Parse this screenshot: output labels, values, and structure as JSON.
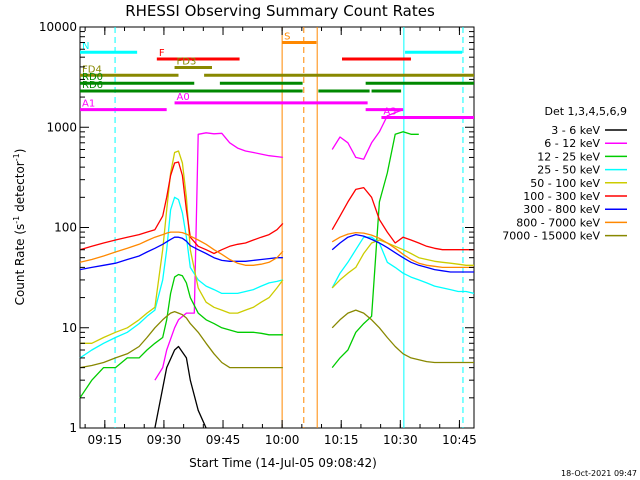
{
  "chart_data": {
    "type": "line",
    "title": "RHESSI Observing Summary Count Rates",
    "xlabel": "Start Time (14-Jul-05 09:08:42)",
    "ylabel_main": "Count Rate (s",
    "ylabel_exp1": "-1",
    "ylabel_mid": " detector",
    "ylabel_exp2": "-1",
    "ylabel_end": ")",
    "footer": "18-Oct-2021 09:47",
    "y_scale": "log",
    "ylim": [
      1,
      10000
    ],
    "xlim_minutes": [
      0,
      100
    ],
    "x_ticks": [
      {
        "min": 6.3,
        "label": "09:15"
      },
      {
        "min": 21.3,
        "label": "09:30"
      },
      {
        "min": 36.3,
        "label": "09:45"
      },
      {
        "min": 51.3,
        "label": "10:00"
      },
      {
        "min": 66.3,
        "label": "10:15"
      },
      {
        "min": 81.3,
        "label": "10:30"
      },
      {
        "min": 96.3,
        "label": "10:45"
      }
    ],
    "y_ticks": [
      {
        "value": 1,
        "label": "1"
      },
      {
        "value": 10,
        "label": "10"
      },
      {
        "value": 100,
        "label": "100"
      },
      {
        "value": 1000,
        "label": "1000"
      },
      {
        "value": 10000,
        "label": "10000"
      }
    ],
    "legend_title": "Det 1,3,4,5,6,9",
    "legend_placement": "right",
    "series": [
      {
        "name": "3 - 6 keV",
        "color": "#000000",
        "x": [
          0,
          4,
          8,
          12,
          15,
          17,
          19,
          21,
          22,
          24,
          25,
          27,
          28,
          30,
          32,
          34,
          36,
          38,
          40,
          42,
          44,
          46,
          48,
          50,
          51.5
        ],
        "y": [
          null,
          null,
          null,
          null,
          null,
          null,
          1,
          2.5,
          4,
          6,
          6.5,
          5,
          3,
          1.5,
          1,
          null,
          null,
          null,
          null,
          null,
          null,
          null,
          null,
          null,
          null
        ]
      },
      {
        "name": "6 - 12 keV",
        "color": "#ff00ff",
        "x": [
          0,
          4,
          8,
          12,
          15,
          17,
          19,
          21,
          22,
          24,
          25,
          27,
          28,
          29,
          30,
          32,
          34,
          36,
          38,
          40,
          42,
          44,
          46,
          48,
          50,
          51.5,
          56,
          62,
          64,
          66,
          68,
          70,
          72,
          74,
          76,
          78,
          80,
          82,
          84,
          86,
          88,
          90,
          92,
          94,
          96,
          98,
          100
        ],
        "y": [
          null,
          null,
          null,
          null,
          null,
          null,
          3,
          4,
          6,
          10,
          12,
          14,
          14,
          14,
          850,
          880,
          860,
          870,
          700,
          620,
          580,
          560,
          540,
          520,
          510,
          500,
          null,
          null,
          600,
          800,
          700,
          500,
          480,
          700,
          900,
          1300,
          1400,
          1500,
          null,
          null,
          null,
          null,
          null,
          null,
          null,
          null,
          null
        ]
      },
      {
        "name": "12 - 25 keV",
        "color": "#00cc00",
        "x": [
          0,
          3,
          6,
          9,
          12,
          15,
          17,
          19,
          21,
          22,
          23,
          24,
          25,
          26,
          27,
          28,
          30,
          32,
          34,
          36,
          38,
          40,
          42,
          44,
          46,
          48,
          50,
          51.5,
          56,
          62,
          64,
          66,
          68,
          70,
          72,
          74,
          76,
          78,
          80,
          82,
          84,
          86,
          88,
          90,
          92,
          94,
          96,
          98,
          100
        ],
        "y": [
          2,
          3,
          4,
          4,
          5,
          5,
          6,
          7,
          8,
          12,
          22,
          32,
          34,
          33,
          28,
          20,
          14,
          12,
          11,
          10,
          9.5,
          9,
          9,
          9,
          8.8,
          8.5,
          8.5,
          8.5,
          null,
          null,
          4,
          5,
          6,
          9,
          11,
          13,
          180,
          350,
          850,
          900,
          850,
          850,
          null,
          null,
          null,
          null,
          null,
          null,
          null
        ]
      },
      {
        "name": "25 - 50 keV",
        "color": "#00ffff",
        "x": [
          0,
          3,
          6,
          9,
          12,
          15,
          17,
          19,
          21,
          22,
          23,
          24,
          25,
          26,
          27,
          28,
          30,
          32,
          34,
          36,
          38,
          40,
          42,
          44,
          46,
          48,
          50,
          51.5,
          56,
          62,
          64,
          66,
          68,
          70,
          72,
          74,
          76,
          78,
          80,
          82,
          84,
          86,
          88,
          90,
          92,
          94,
          96,
          98,
          100
        ],
        "y": [
          5,
          6,
          7,
          8,
          9,
          11,
          13,
          15,
          30,
          60,
          150,
          200,
          190,
          140,
          80,
          40,
          30,
          26,
          24,
          22,
          22,
          22,
          23,
          24,
          26,
          28,
          29,
          30,
          null,
          null,
          25,
          35,
          45,
          60,
          80,
          80,
          70,
          45,
          40,
          35,
          32,
          30,
          28,
          26,
          25,
          24,
          23,
          23,
          22
        ]
      },
      {
        "name": "50 - 100 keV",
        "color": "#cccc00",
        "x": [
          0,
          3,
          6,
          9,
          12,
          15,
          17,
          19,
          21,
          22,
          23,
          24,
          25,
          26,
          27,
          28,
          30,
          32,
          34,
          36,
          38,
          40,
          42,
          44,
          46,
          48,
          50,
          51.5,
          56,
          62,
          64,
          66,
          68,
          70,
          72,
          74,
          76,
          78,
          80,
          82,
          84,
          86,
          88,
          90,
          92,
          94,
          96,
          98,
          100
        ],
        "y": [
          7,
          7,
          8,
          9,
          10,
          12,
          14,
          16,
          60,
          150,
          350,
          560,
          580,
          440,
          200,
          60,
          25,
          18,
          16,
          15,
          14,
          14,
          15,
          16,
          18,
          20,
          25,
          30,
          null,
          null,
          25,
          30,
          35,
          40,
          55,
          70,
          75,
          70,
          65,
          60,
          55,
          50,
          48,
          46,
          45,
          44,
          43,
          42,
          42
        ]
      },
      {
        "name": "100 - 300 keV",
        "color": "#ff0000",
        "x": [
          0,
          3,
          6,
          9,
          12,
          15,
          17,
          19,
          21,
          22,
          23,
          24,
          25,
          26,
          27,
          28,
          30,
          32,
          34,
          36,
          38,
          40,
          42,
          44,
          46,
          48,
          50,
          51.5,
          56,
          62,
          64,
          66,
          68,
          70,
          72,
          74,
          76,
          78,
          80,
          82,
          84,
          86,
          88,
          90,
          92,
          94,
          96,
          98,
          100
        ],
        "y": [
          60,
          65,
          70,
          75,
          80,
          85,
          90,
          95,
          130,
          200,
          330,
          440,
          450,
          330,
          150,
          80,
          65,
          60,
          55,
          60,
          65,
          68,
          70,
          75,
          80,
          85,
          95,
          110,
          null,
          null,
          95,
          130,
          180,
          240,
          250,
          200,
          120,
          90,
          70,
          80,
          75,
          70,
          65,
          62,
          60,
          60,
          60,
          60,
          60
        ]
      },
      {
        "name": "300 - 800 keV",
        "color": "#0000ff",
        "x": [
          0,
          3,
          6,
          9,
          12,
          15,
          17,
          19,
          21,
          22,
          23,
          24,
          25,
          26,
          27,
          28,
          30,
          32,
          34,
          36,
          38,
          40,
          42,
          44,
          46,
          48,
          50,
          51.5,
          56,
          62,
          64,
          66,
          68,
          70,
          72,
          74,
          76,
          78,
          80,
          82,
          84,
          86,
          88,
          90,
          92,
          94,
          96,
          98,
          100
        ],
        "y": [
          38,
          40,
          42,
          44,
          48,
          52,
          57,
          62,
          68,
          72,
          76,
          80,
          80,
          78,
          73,
          66,
          60,
          55,
          50,
          47,
          46,
          46,
          46,
          47,
          48,
          49,
          50,
          50,
          null,
          null,
          60,
          70,
          80,
          85,
          82,
          76,
          70,
          63,
          56,
          50,
          45,
          42,
          40,
          38,
          37,
          36,
          36,
          36,
          36
        ]
      },
      {
        "name": "800 - 7000 keV",
        "color": "#ff8800",
        "x": [
          0,
          3,
          6,
          9,
          12,
          15,
          17,
          19,
          21,
          22,
          23,
          24,
          25,
          26,
          27,
          28,
          30,
          32,
          34,
          36,
          38,
          40,
          42,
          44,
          46,
          48,
          50,
          51.5,
          56,
          62,
          64,
          66,
          68,
          70,
          72,
          74,
          76,
          78,
          80,
          82,
          84,
          86,
          88,
          90,
          92,
          94,
          96,
          98,
          100
        ],
        "y": [
          45,
          48,
          52,
          57,
          62,
          68,
          74,
          80,
          85,
          88,
          90,
          90,
          90,
          89,
          86,
          82,
          75,
          68,
          60,
          54,
          48,
          44,
          42,
          42,
          43,
          45,
          50,
          58,
          null,
          null,
          72,
          80,
          86,
          89,
          88,
          84,
          78,
          70,
          62,
          54,
          48,
          44,
          42,
          41,
          40,
          40,
          40,
          40,
          40
        ]
      },
      {
        "name": "7000 - 15000 keV",
        "color": "#888800",
        "x": [
          0,
          3,
          6,
          9,
          12,
          15,
          17,
          19,
          21,
          22,
          23,
          24,
          25,
          26,
          27,
          28,
          30,
          32,
          34,
          36,
          38,
          40,
          42,
          44,
          46,
          48,
          50,
          51.5,
          56,
          62,
          64,
          66,
          68,
          70,
          72,
          74,
          76,
          78,
          80,
          82,
          84,
          86,
          88,
          90,
          92,
          94,
          96,
          98,
          100
        ],
        "y": [
          4,
          4.2,
          4.5,
          5,
          5.5,
          6.5,
          8,
          10,
          12,
          13,
          14,
          14.5,
          14,
          13.5,
          12.5,
          11,
          9,
          7,
          5.5,
          4.5,
          4,
          4,
          4,
          4,
          4,
          4,
          4,
          4,
          null,
          null,
          10,
          12,
          14,
          15,
          14,
          12,
          10,
          8,
          6.5,
          5.5,
          5,
          4.8,
          4.6,
          4.5,
          4.5,
          4.5,
          4.5,
          4.5,
          4.5
        ]
      }
    ],
    "vertical_lines": [
      {
        "min": 8.9,
        "color": "#00ffff",
        "style": "dashed"
      },
      {
        "min": 51.3,
        "color": "#ff8800",
        "style": "solid"
      },
      {
        "min": 56.8,
        "color": "#ff8800",
        "style": "dashed"
      },
      {
        "min": 60.2,
        "color": "#ff8800",
        "style": "solid"
      },
      {
        "min": 82.2,
        "color": "#00ffff",
        "style": "solid"
      },
      {
        "min": 97.2,
        "color": "#00ffff",
        "style": "dashed"
      }
    ],
    "flag_bars": [
      {
        "label": "N",
        "color": "#00ffff",
        "y": 5600,
        "segments": [
          [
            0,
            14.5
          ],
          [
            82.5,
            97
          ]
        ]
      },
      {
        "label": "S",
        "color": "#ff8800",
        "y": 7000,
        "segments": [
          [
            51.3,
            60
          ]
        ]
      },
      {
        "label": "F",
        "color": "#ff0000",
        "y": 4800,
        "segments": [
          [
            19.5,
            40.5
          ],
          [
            66.5,
            84
          ]
        ]
      },
      {
        "label": "FD3",
        "color": "#888800",
        "y": 3950,
        "segments": [
          [
            24,
            33.5
          ]
        ]
      },
      {
        "label": "FD4",
        "color": "#888800",
        "y": 3300,
        "segments": [
          [
            0,
            25
          ],
          [
            31.5,
            100
          ]
        ]
      },
      {
        "label": "RD0",
        "color": "#008800",
        "y": 2750,
        "segments": [
          [
            0,
            29
          ],
          [
            35.5,
            56.5
          ],
          [
            72.5,
            100
          ]
        ]
      },
      {
        "label": "RD6",
        "color": "#008800",
        "y": 2300,
        "segments": [
          [
            0,
            56.5
          ],
          [
            60.5,
            73.5
          ],
          [
            74,
            81.5
          ]
        ]
      },
      {
        "label": "A0",
        "color": "#ff00ff",
        "y": 1750,
        "segments": [
          [
            24,
            73
          ]
        ]
      },
      {
        "label": "A1",
        "color": "#ff00ff",
        "y": 1500,
        "segments": [
          [
            0,
            22
          ],
          [
            72.5,
            82
          ]
        ]
      },
      {
        "label": "A3",
        "color": "#ff00ff",
        "y": 1250,
        "segments": [
          [
            76.5,
            100
          ]
        ]
      }
    ]
  }
}
